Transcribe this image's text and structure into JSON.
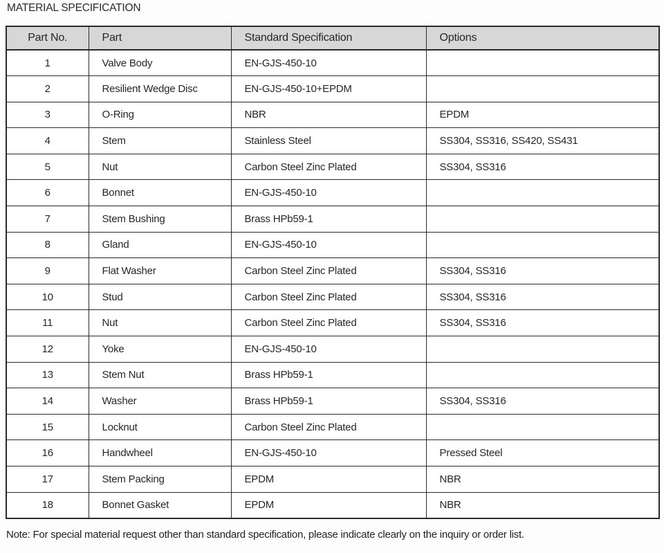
{
  "page": {
    "title": "MATERIAL SPECIFICATION",
    "note": "Note: For special material request other than standard specification, please indicate clearly on the inquiry or order list."
  },
  "table": {
    "columns": [
      "Part No.",
      "Part",
      "Standard Specification",
      "Options"
    ],
    "rows": [
      {
        "part_no": "1",
        "part": "Valve Body",
        "standard_specification": "EN-GJS-450-10",
        "options": ""
      },
      {
        "part_no": "2",
        "part": "Resilient Wedge Disc",
        "standard_specification": "EN-GJS-450-10+EPDM",
        "options": ""
      },
      {
        "part_no": "3",
        "part": "O-Ring",
        "standard_specification": "NBR",
        "options": "EPDM"
      },
      {
        "part_no": "4",
        "part": "Stem",
        "standard_specification": "Stainless Steel",
        "options": "SS304, SS316, SS420, SS431"
      },
      {
        "part_no": "5",
        "part": "Nut",
        "standard_specification": "Carbon Steel Zinc Plated",
        "options": "SS304, SS316"
      },
      {
        "part_no": "6",
        "part": "Bonnet",
        "standard_specification": "EN-GJS-450-10",
        "options": ""
      },
      {
        "part_no": "7",
        "part": "Stem Bushing",
        "standard_specification": "Brass HPb59-1",
        "options": ""
      },
      {
        "part_no": "8",
        "part": "Gland",
        "standard_specification": "EN-GJS-450-10",
        "options": ""
      },
      {
        "part_no": "9",
        "part": "Flat Washer",
        "standard_specification": "Carbon Steel Zinc Plated",
        "options": "SS304, SS316"
      },
      {
        "part_no": "10",
        "part": "Stud",
        "standard_specification": "Carbon Steel Zinc Plated",
        "options": "SS304, SS316"
      },
      {
        "part_no": "11",
        "part": "Nut",
        "standard_specification": "Carbon Steel Zinc Plated",
        "options": "SS304, SS316"
      },
      {
        "part_no": "12",
        "part": "Yoke",
        "standard_specification": "EN-GJS-450-10",
        "options": ""
      },
      {
        "part_no": "13",
        "part": "Stem Nut",
        "standard_specification": "Brass HPb59-1",
        "options": ""
      },
      {
        "part_no": "14",
        "part": "Washer",
        "standard_specification": "Brass HPb59-1",
        "options": "SS304, SS316"
      },
      {
        "part_no": "15",
        "part": "Locknut",
        "standard_specification": "Carbon Steel Zinc Plated",
        "options": ""
      },
      {
        "part_no": "16",
        "part": "Handwheel",
        "standard_specification": "EN-GJS-450-10",
        "options": "Pressed Steel"
      },
      {
        "part_no": "17",
        "part": "Stem Packing",
        "standard_specification": "EPDM",
        "options": "NBR"
      },
      {
        "part_no": "18",
        "part": "Bonnet Gasket",
        "standard_specification": "EPDM",
        "options": "NBR"
      }
    ]
  },
  "colors": {
    "page_bg": "#fdfdfd",
    "header_bg": "#d7d7d7",
    "border": "#2b2b2b",
    "text": "#262626"
  }
}
